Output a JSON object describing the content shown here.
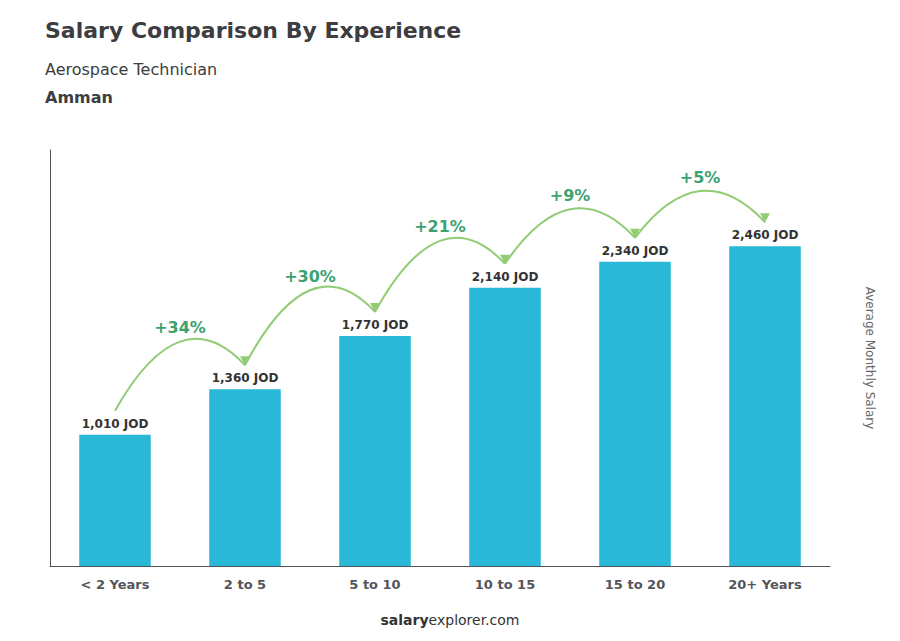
{
  "chart_data": {
    "type": "bar",
    "title": "Salary Comparison By Experience",
    "subtitle": "Aerospace Technician",
    "city": "Amman",
    "categories": [
      "< 2 Years",
      "2 to 5",
      "5 to 10",
      "10 to 15",
      "15 to 20",
      "20+ Years"
    ],
    "values": [
      1010,
      1360,
      1770,
      2140,
      2340,
      2460
    ],
    "value_labels": [
      "1,010 JOD",
      "1,360 JOD",
      "1,770 JOD",
      "2,140 JOD",
      "2,340 JOD",
      "2,460 JOD"
    ],
    "data_labels": true,
    "color": "#29B8D8",
    "annotations": [
      "+34%",
      "+30%",
      "+21%",
      "+9%",
      "+5%"
    ],
    "ylabel": "Average Monthly Salary",
    "watermark": [
      "salary",
      "explorer.com"
    ],
    "ylim": [
      0,
      3200
    ],
    "yticks": [],
    "grid": false,
    "tick_labels": "x"
  }
}
